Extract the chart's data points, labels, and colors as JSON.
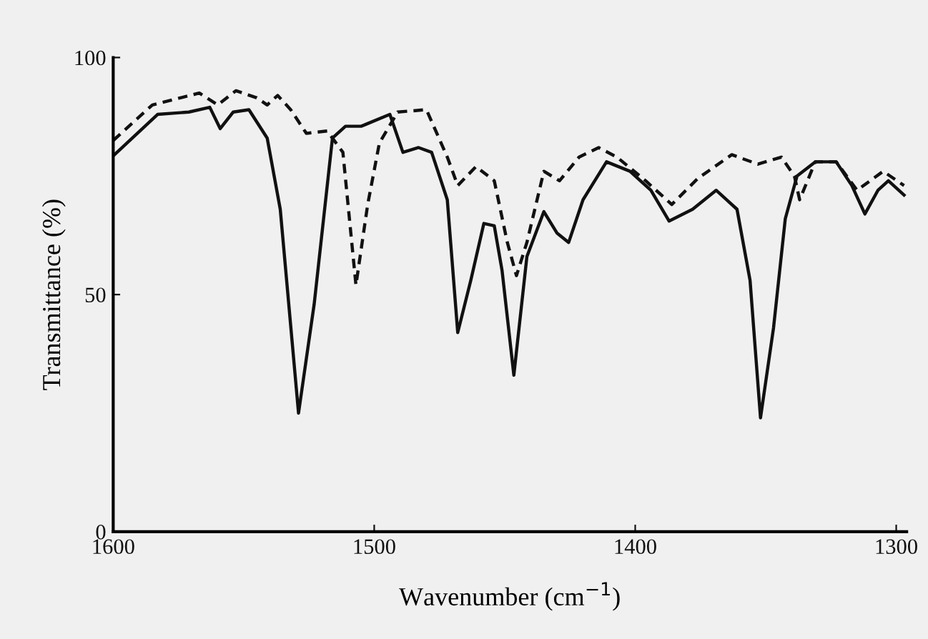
{
  "chart_data": {
    "type": "line",
    "xlabel": "Wavenumber (cm$^{−1}$)",
    "ylabel": "Transmittance (%)",
    "xlim": [
      1600,
      1296
    ],
    "xticks": [
      1600,
      1500,
      1400,
      1300
    ],
    "ylim": [
      0,
      100
    ],
    "yticks": [
      0,
      50,
      100
    ],
    "grid": false,
    "marker": "none",
    "series": [
      {
        "color": "#111111",
        "line_style": "solid",
        "x": [
          1599.5,
          1583,
          1571,
          1563,
          1559,
          1554,
          1548,
          1541,
          1536,
          1529,
          1523,
          1516,
          1511,
          1505,
          1494,
          1489,
          1483,
          1478,
          1472,
          1468,
          1463,
          1458,
          1454,
          1451,
          1446.5,
          1441.5,
          1435,
          1430,
          1425.5,
          1420,
          1411,
          1402,
          1394,
          1387,
          1378,
          1369,
          1361,
          1356,
          1352,
          1347,
          1342.5,
          1338,
          1331,
          1323,
          1317,
          1312,
          1307,
          1303,
          1297
        ],
        "values": [
          79.5,
          88,
          88.5,
          89.5,
          85,
          88.5,
          89,
          83,
          68,
          25,
          48,
          83,
          85.5,
          85.5,
          88,
          80,
          81,
          80,
          70,
          42,
          53,
          65,
          64.5,
          55,
          33,
          58,
          67.5,
          63,
          61,
          70,
          78,
          76,
          72,
          65.5,
          68,
          72,
          68,
          53,
          24,
          43,
          66,
          75,
          78,
          78,
          73,
          67,
          72,
          74,
          71
        ]
      },
      {
        "color": "#111111",
        "line_style": "dashed",
        "x": [
          1600,
          1585,
          1567,
          1560,
          1553,
          1545,
          1541,
          1537,
          1532,
          1526,
          1518,
          1512,
          1507,
          1502.5,
          1498,
          1491,
          1480,
          1472,
          1468,
          1461,
          1454,
          1449,
          1445.5,
          1441.5,
          1435,
          1429,
          1421.5,
          1414,
          1407,
          1396,
          1386,
          1376,
          1363,
          1353,
          1344,
          1339,
          1337,
          1331,
          1323,
          1315,
          1305,
          1297
        ],
        "values": [
          82.5,
          90,
          92.5,
          90,
          93,
          91.5,
          90,
          92,
          89,
          84,
          84.5,
          80,
          52,
          69,
          82,
          88.5,
          89,
          79,
          73,
          77,
          74,
          61,
          54,
          61,
          76,
          74,
          79,
          81,
          79,
          74,
          69,
          74.5,
          79.5,
          77.5,
          79,
          75,
          70,
          78,
          78,
          72,
          76,
          73
        ]
      }
    ]
  }
}
